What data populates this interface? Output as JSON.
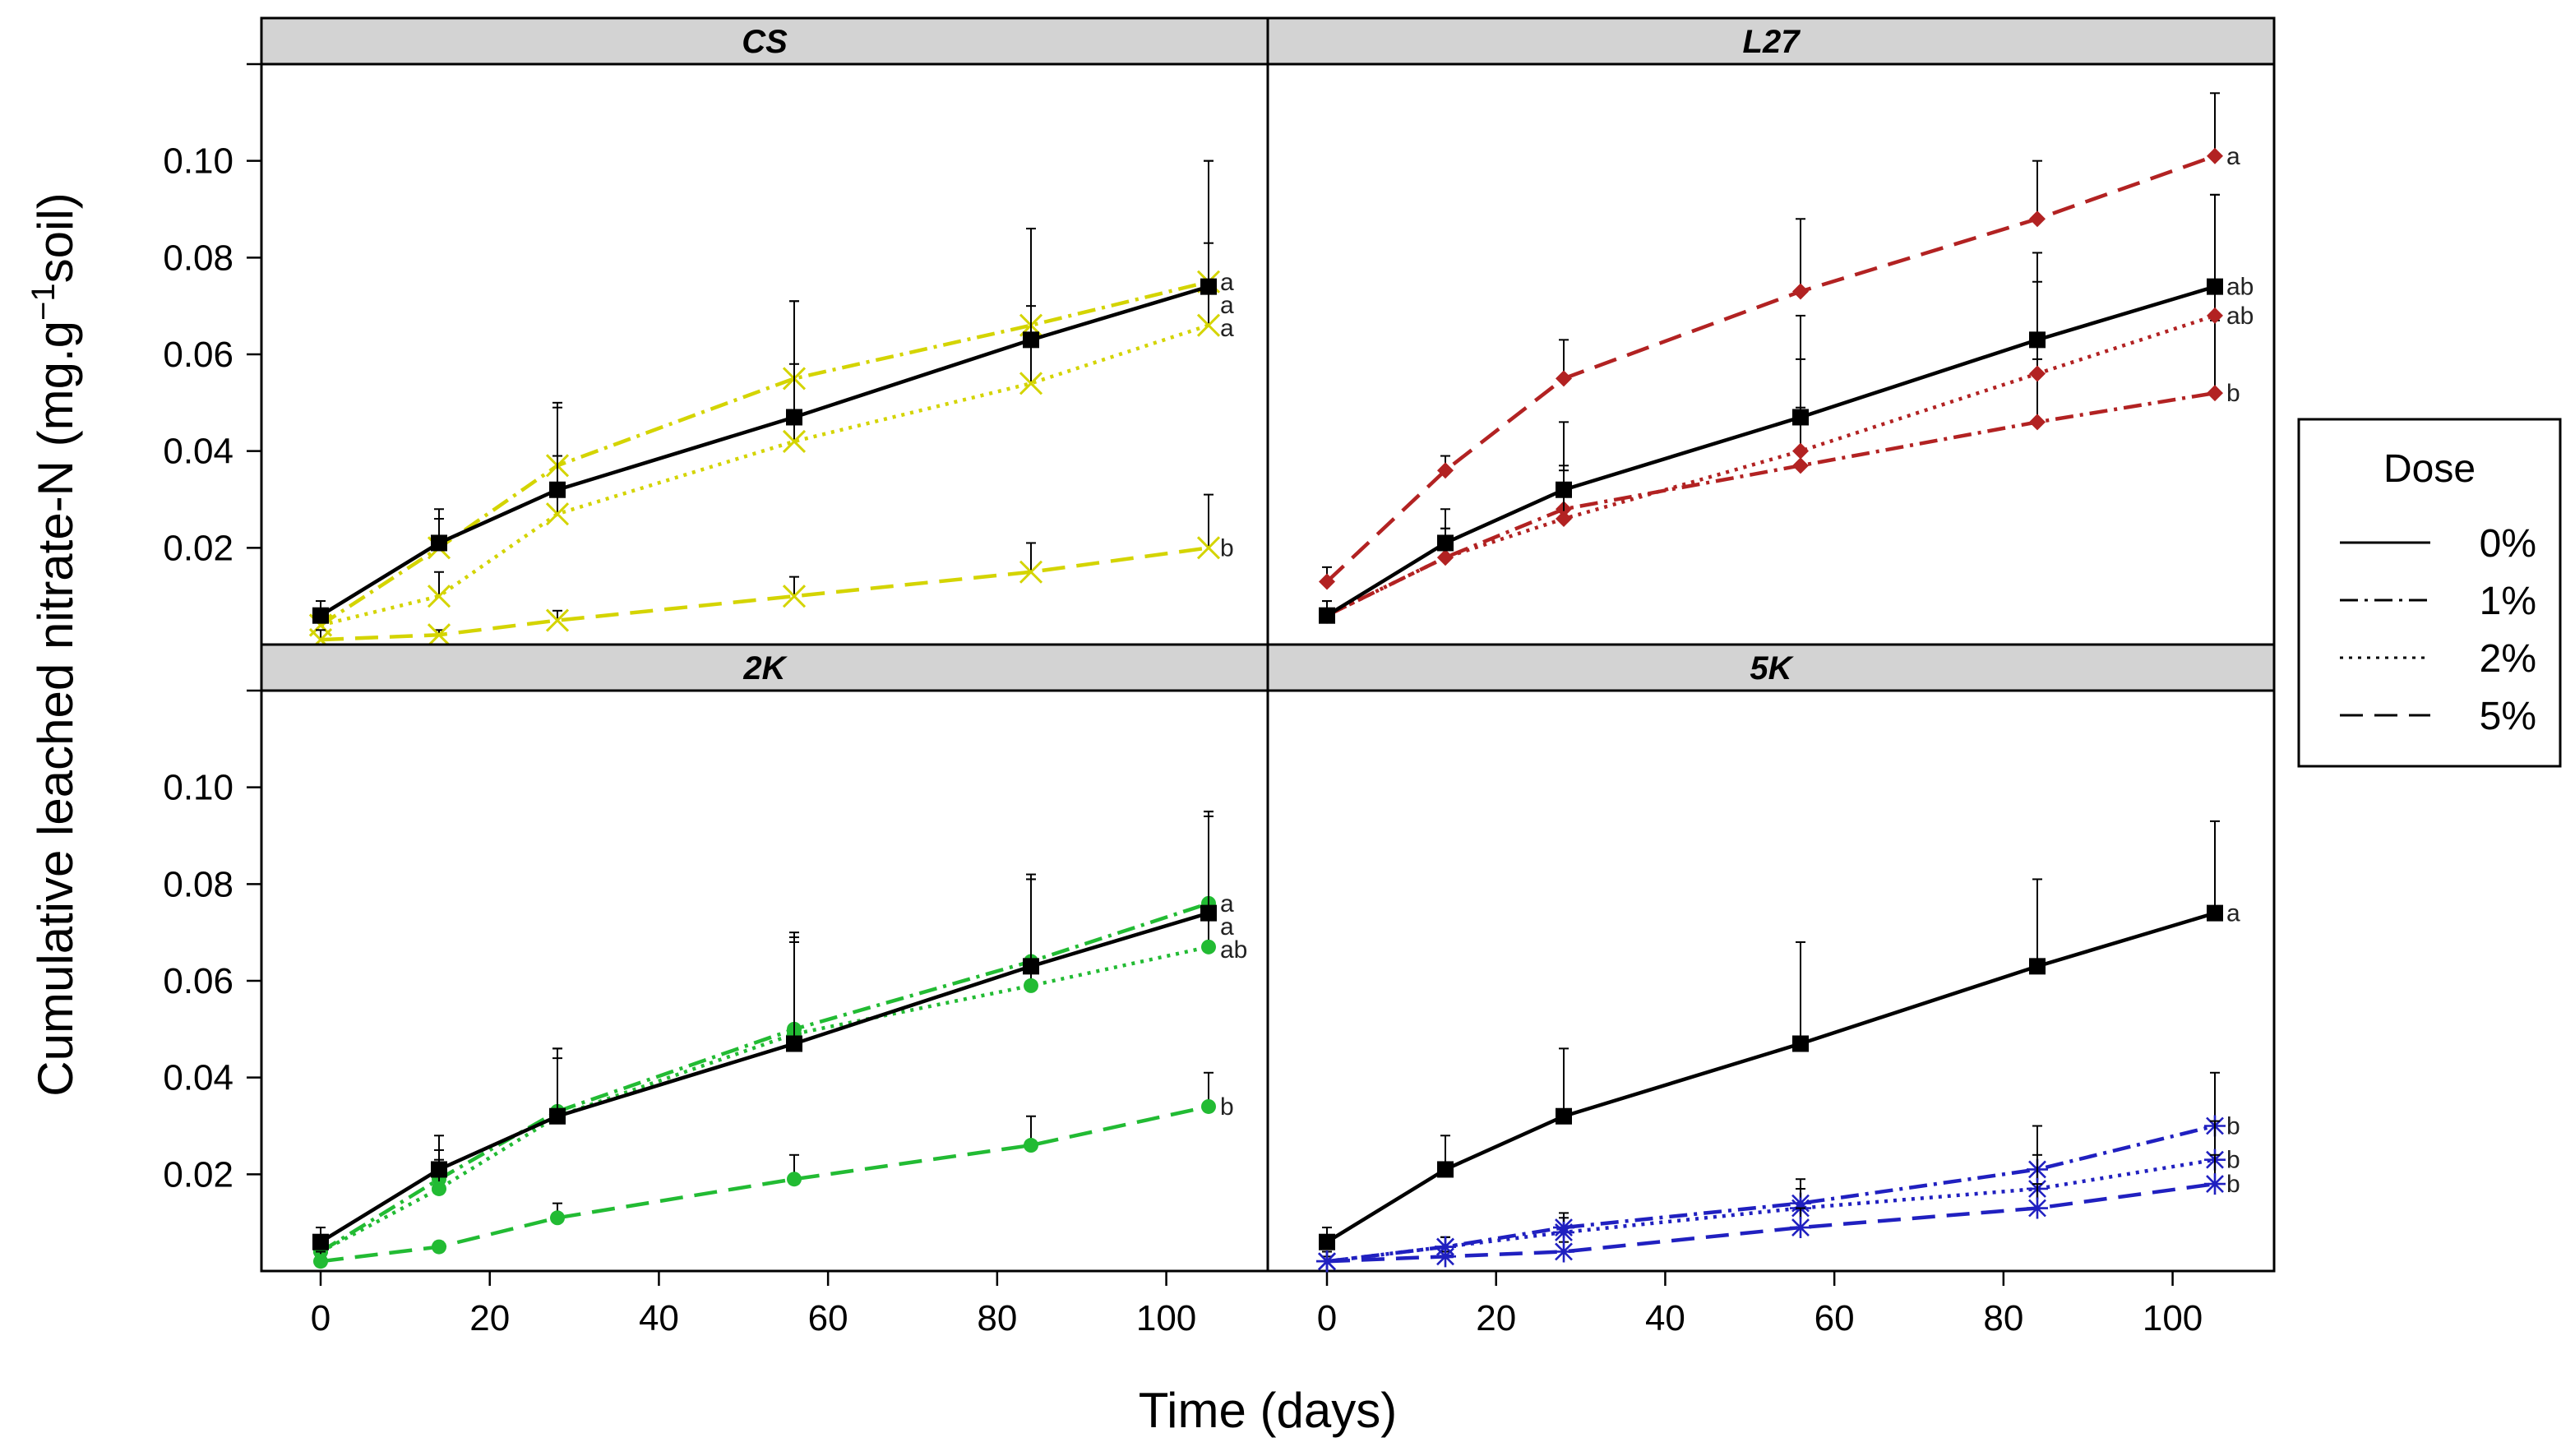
{
  "chart_data": {
    "type": "line",
    "ylabel_main": "Cumulative leached nitrate-N  (mg.g",
    "ylabel_sup": "−1",
    "ylabel_end": "soil)",
    "xlabel": "Time (days)",
    "x": [
      0,
      14,
      28,
      56,
      84,
      105
    ],
    "xlim": [
      -7,
      112
    ],
    "ylim": [
      0,
      0.12
    ],
    "xticks": [
      0,
      20,
      40,
      60,
      80,
      100
    ],
    "yticks": [
      0.02,
      0.04,
      0.06,
      0.08,
      0.1
    ],
    "ytick_labels": [
      "0.02",
      "0.04",
      "0.06",
      "0.08",
      "0.10"
    ],
    "legend": {
      "title": "Dose",
      "entries": [
        {
          "label": "0%",
          "dash": "solid"
        },
        {
          "label": "1%",
          "dash": "dotdash"
        },
        {
          "label": "2%",
          "dash": "dotted"
        },
        {
          "label": "5%",
          "dash": "dashed"
        }
      ]
    },
    "panels": [
      {
        "name": "CS",
        "color": "#d4d400",
        "marker": "x",
        "series": [
          {
            "dose": "0%",
            "values": [
              0.006,
              0.021,
              0.032,
              0.047,
              0.063,
              0.074
            ],
            "err": [
              0.003,
              0.007,
              0.017,
              0.024,
              0.023,
              0.026
            ],
            "letter": "a"
          },
          {
            "dose": "1%",
            "values": [
              0.004,
              0.02,
              0.037,
              0.055,
              0.066,
              0.075
            ],
            "err": [
              0.003,
              0.006,
              0.013,
              0.016,
              0.02,
              0.025
            ],
            "letter": "a"
          },
          {
            "dose": "2%",
            "values": [
              0.004,
              0.01,
              0.027,
              0.042,
              0.054,
              0.066
            ],
            "err": [
              0.003,
              0.005,
              0.012,
              0.016,
              0.016,
              0.017
            ],
            "letter": "a"
          },
          {
            "dose": "5%",
            "values": [
              0.001,
              0.002,
              0.005,
              0.01,
              0.015,
              0.02
            ],
            "err": [
              0.002,
              0.001,
              0.002,
              0.004,
              0.006,
              0.011
            ],
            "letter": "b"
          }
        ]
      },
      {
        "name": "L27",
        "color": "#b22222",
        "marker": "diamond",
        "series": [
          {
            "dose": "0%",
            "values": [
              0.006,
              0.021,
              0.032,
              0.047,
              0.063,
              0.074
            ],
            "err": [
              0.003,
              0.007,
              0.014,
              0.021,
              0.018,
              0.019
            ],
            "letter": "ab"
          },
          {
            "dose": "1%",
            "values": [
              0.006,
              0.018,
              0.028,
              0.037,
              0.046,
              0.052
            ],
            "err": [
              0.003,
              0.006,
              0.009,
              0.012,
              0.013,
              0.015
            ],
            "letter": "b"
          },
          {
            "dose": "2%",
            "values": [
              0.006,
              0.018,
              0.026,
              0.04,
              0.056,
              0.068
            ],
            "err": [
              0.003,
              0.006,
              0.01,
              0.019,
              0.019,
              0.025
            ],
            "letter": "ab"
          },
          {
            "dose": "5%",
            "values": [
              0.013,
              0.036,
              0.055,
              0.073,
              0.088,
              0.101
            ],
            "err": [
              0.003,
              0.003,
              0.008,
              0.015,
              0.012,
              0.013
            ],
            "letter": "a"
          }
        ]
      },
      {
        "name": "2K",
        "color": "#22bb33",
        "marker": "dot",
        "series": [
          {
            "dose": "0%",
            "values": [
              0.006,
              0.021,
              0.032,
              0.047,
              0.063,
              0.074
            ],
            "err": [
              0.003,
              0.007,
              0.014,
              0.021,
              0.018,
              0.02
            ],
            "letter": "a"
          },
          {
            "dose": "1%",
            "values": [
              0.004,
              0.019,
              0.033,
              0.05,
              0.064,
              0.076
            ],
            "err": [
              0.003,
              0.006,
              0.013,
              0.02,
              0.018,
              0.019
            ],
            "letter": "a"
          },
          {
            "dose": "2%",
            "values": [
              0.004,
              0.017,
              0.032,
              0.049,
              0.059,
              0.067
            ],
            "err": [
              0.003,
              0.006,
              0.012,
              0.02,
              0.022,
              0.028
            ],
            "letter": "ab"
          },
          {
            "dose": "5%",
            "values": [
              0.002,
              0.005,
              0.011,
              0.019,
              0.026,
              0.034
            ],
            "err": [
              0.002,
              0.001,
              0.003,
              0.005,
              0.006,
              0.007
            ],
            "letter": "b"
          }
        ]
      },
      {
        "name": "5K",
        "color": "#2020c0",
        "marker": "star",
        "series": [
          {
            "dose": "0%",
            "values": [
              0.006,
              0.021,
              0.032,
              0.047,
              0.063,
              0.074
            ],
            "err": [
              0.003,
              0.007,
              0.014,
              0.021,
              0.018,
              0.019
            ],
            "letter": "a"
          },
          {
            "dose": "1%",
            "values": [
              0.002,
              0.005,
              0.009,
              0.014,
              0.021,
              0.03
            ],
            "err": [
              0.002,
              0.002,
              0.003,
              0.005,
              0.009,
              0.011
            ],
            "letter": "b"
          },
          {
            "dose": "2%",
            "values": [
              0.002,
              0.005,
              0.008,
              0.013,
              0.017,
              0.023
            ],
            "err": [
              0.002,
              0.002,
              0.003,
              0.004,
              0.007,
              0.008
            ],
            "letter": "b"
          },
          {
            "dose": "5%",
            "values": [
              0.002,
              0.003,
              0.004,
              0.009,
              0.013,
              0.018
            ],
            "err": [
              0.001,
              0.001,
              0.002,
              0.004,
              0.005,
              0.006
            ],
            "letter": "b"
          }
        ]
      }
    ]
  }
}
